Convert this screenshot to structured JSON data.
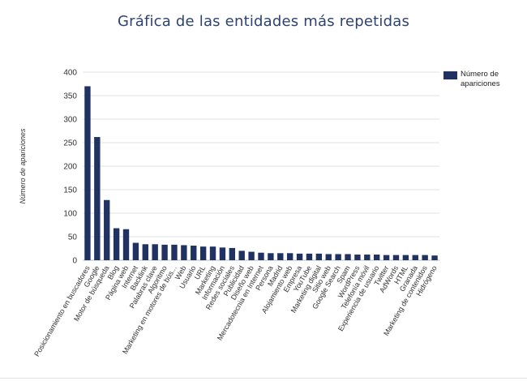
{
  "chart_data": {
    "type": "bar",
    "title": "Gráfica de las entidades más repetidas",
    "ylabel": "Número de apariciones",
    "xlabel": "",
    "ylim": [
      0,
      400
    ],
    "yticks": [
      0,
      50,
      100,
      150,
      200,
      250,
      300,
      350,
      400
    ],
    "grid": true,
    "legend_position": "top-right",
    "bar_color": "#1f3262",
    "categories": [
      "Posicionamiento en buscadores",
      "Google",
      "Motor de búsqueda",
      "Blog",
      "Página web",
      "Internet",
      "Backlink",
      "Palabras clave",
      "Algoritmo",
      "Marketing en motores de bús...",
      "Web",
      "Usuario",
      "URL",
      "Marketing",
      "Información",
      "Redes sociales",
      "Publicidad",
      "Diseño web",
      "Mercadotecnia en Internet",
      "Persona",
      "Madrid",
      "Alojamiento web",
      "Empresa",
      "YouTube",
      "Marketing digital",
      "Sitio web",
      "Google Search",
      "Spam",
      "WordPress",
      "Telefonía móvil",
      "Experiencia de usuario",
      "Twitter",
      "AdWords",
      "HTML",
      "Granada",
      "Marketing de contenidos",
      "Hidrógeno"
    ],
    "series": [
      {
        "name": "Número de apariciones",
        "values": [
          370,
          262,
          128,
          68,
          66,
          37,
          34,
          34,
          33,
          33,
          32,
          31,
          29,
          29,
          27,
          26,
          20,
          18,
          16,
          15,
          15,
          15,
          14,
          14,
          14,
          13,
          13,
          13,
          12,
          12,
          12,
          11,
          11,
          11,
          11,
          11,
          10
        ]
      }
    ]
  }
}
